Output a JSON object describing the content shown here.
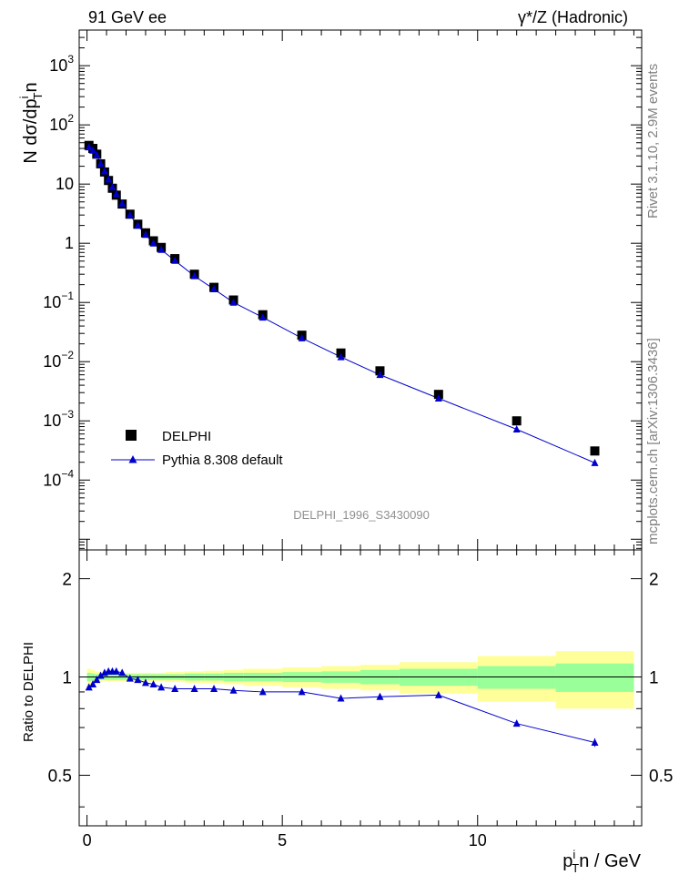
{
  "header": {
    "left": "91 GeV ee",
    "right": "γ*/Z (Hadronic)"
  },
  "side_labels": {
    "rivet": "Rivet 3.1.10,  2.9M events",
    "mcplots": "mcplots.cern.ch [arXiv:1306.3436]"
  },
  "watermark": "DELPHI_1996_S3430090",
  "axes": {
    "ylabel_main": {
      "base": "N dσ/dp",
      "sup": "i",
      "sub": "T",
      "tail": "n"
    },
    "ylabel_ratio": "Ratio to DELPHI",
    "xlabel": {
      "base": "p",
      "sup": "i",
      "sub": "T",
      "tail": "n / GeV"
    },
    "x_ticks": [
      "0",
      "5",
      "10"
    ],
    "y_ticks_main": [
      {
        "base": "10",
        "exp": "3"
      },
      {
        "base": "10",
        "exp": "2"
      },
      {
        "base": "10",
        "exp": ""
      },
      {
        "base": "1",
        "exp": ""
      },
      {
        "base": "10",
        "exp": "−1"
      },
      {
        "base": "10",
        "exp": "−2"
      },
      {
        "base": "10",
        "exp": "−3"
      },
      {
        "base": "10",
        "exp": "−4"
      }
    ],
    "y_ticks_ratio": [
      "2",
      "1",
      "0.5"
    ]
  },
  "legend": {
    "data_label": "DELPHI",
    "mc_label": "Pythia 8.308 default"
  },
  "colors": {
    "data": "#000000",
    "mc": "#0000cc",
    "band_inner": "#99ff99",
    "band_outer": "#ffff99"
  },
  "chart_data": {
    "type": "scatter",
    "y_scale": "log",
    "xlim": [
      -0.2,
      14.2
    ],
    "ylim": [
      6.6e-06,
      4000
    ],
    "ratio_ylim": [
      0.35,
      2.45
    ],
    "ratio_scale": "log",
    "series": [
      {
        "name": "DELPHI",
        "x": [
          0.05,
          0.15,
          0.25,
          0.35,
          0.45,
          0.55,
          0.65,
          0.75,
          0.9,
          1.1,
          1.3,
          1.5,
          1.7,
          1.9,
          2.25,
          2.75,
          3.25,
          3.75,
          4.5,
          5.5,
          6.5,
          7.5,
          9.0,
          11.0,
          13.0
        ],
        "y": [
          45,
          40,
          32,
          22,
          16,
          11.5,
          8.5,
          6.5,
          4.6,
          3.1,
          2.1,
          1.5,
          1.1,
          0.85,
          0.55,
          0.3,
          0.18,
          0.11,
          0.062,
          0.028,
          0.014,
          0.007,
          0.0028,
          0.001,
          0.00031
        ]
      },
      {
        "name": "Pythia 8.308 default",
        "x": [
          0.05,
          0.15,
          0.25,
          0.35,
          0.45,
          0.55,
          0.65,
          0.75,
          0.9,
          1.1,
          1.3,
          1.5,
          1.7,
          1.9,
          2.25,
          2.75,
          3.25,
          3.75,
          4.5,
          5.5,
          6.5,
          7.5,
          9.0,
          11.0,
          13.0
        ],
        "y": [
          42,
          37,
          31,
          22,
          16.5,
          12,
          8.9,
          6.8,
          4.7,
          3.0,
          2.0,
          1.4,
          1.0,
          0.78,
          0.51,
          0.28,
          0.168,
          0.1,
          0.056,
          0.025,
          0.012,
          0.006,
          0.0024,
          0.00072,
          0.000195
        ]
      }
    ],
    "ratio": {
      "x": [
        0.05,
        0.15,
        0.25,
        0.35,
        0.45,
        0.55,
        0.65,
        0.75,
        0.9,
        1.1,
        1.3,
        1.5,
        1.7,
        1.9,
        2.25,
        2.75,
        3.25,
        3.75,
        4.5,
        5.5,
        6.5,
        7.5,
        9.0,
        11.0,
        13.0
      ],
      "y": [
        0.93,
        0.95,
        0.98,
        1.01,
        1.03,
        1.04,
        1.04,
        1.04,
        1.03,
        0.99,
        0.98,
        0.96,
        0.95,
        0.93,
        0.92,
        0.92,
        0.92,
        0.91,
        0.9,
        0.9,
        0.86,
        0.87,
        0.88,
        0.72,
        0.63
      ],
      "band_edges": [
        0,
        0.1,
        0.2,
        0.3,
        0.4,
        0.5,
        0.6,
        0.7,
        0.8,
        1.0,
        1.2,
        1.4,
        1.6,
        1.8,
        2.0,
        2.5,
        3.0,
        3.5,
        4.0,
        5.0,
        6.0,
        7.0,
        8.0,
        10.0,
        12.0,
        14.0
      ],
      "inner_half": [
        0.03,
        0.025,
        0.02,
        0.02,
        0.02,
        0.02,
        0.02,
        0.02,
        0.02,
        0.02,
        0.02,
        0.02,
        0.02,
        0.02,
        0.02,
        0.025,
        0.025,
        0.03,
        0.03,
        0.035,
        0.04,
        0.05,
        0.06,
        0.08,
        0.1
      ],
      "outer_half": [
        0.06,
        0.05,
        0.04,
        0.035,
        0.03,
        0.03,
        0.03,
        0.03,
        0.03,
        0.03,
        0.03,
        0.03,
        0.03,
        0.03,
        0.035,
        0.04,
        0.045,
        0.05,
        0.06,
        0.07,
        0.08,
        0.09,
        0.11,
        0.16,
        0.2
      ]
    }
  }
}
